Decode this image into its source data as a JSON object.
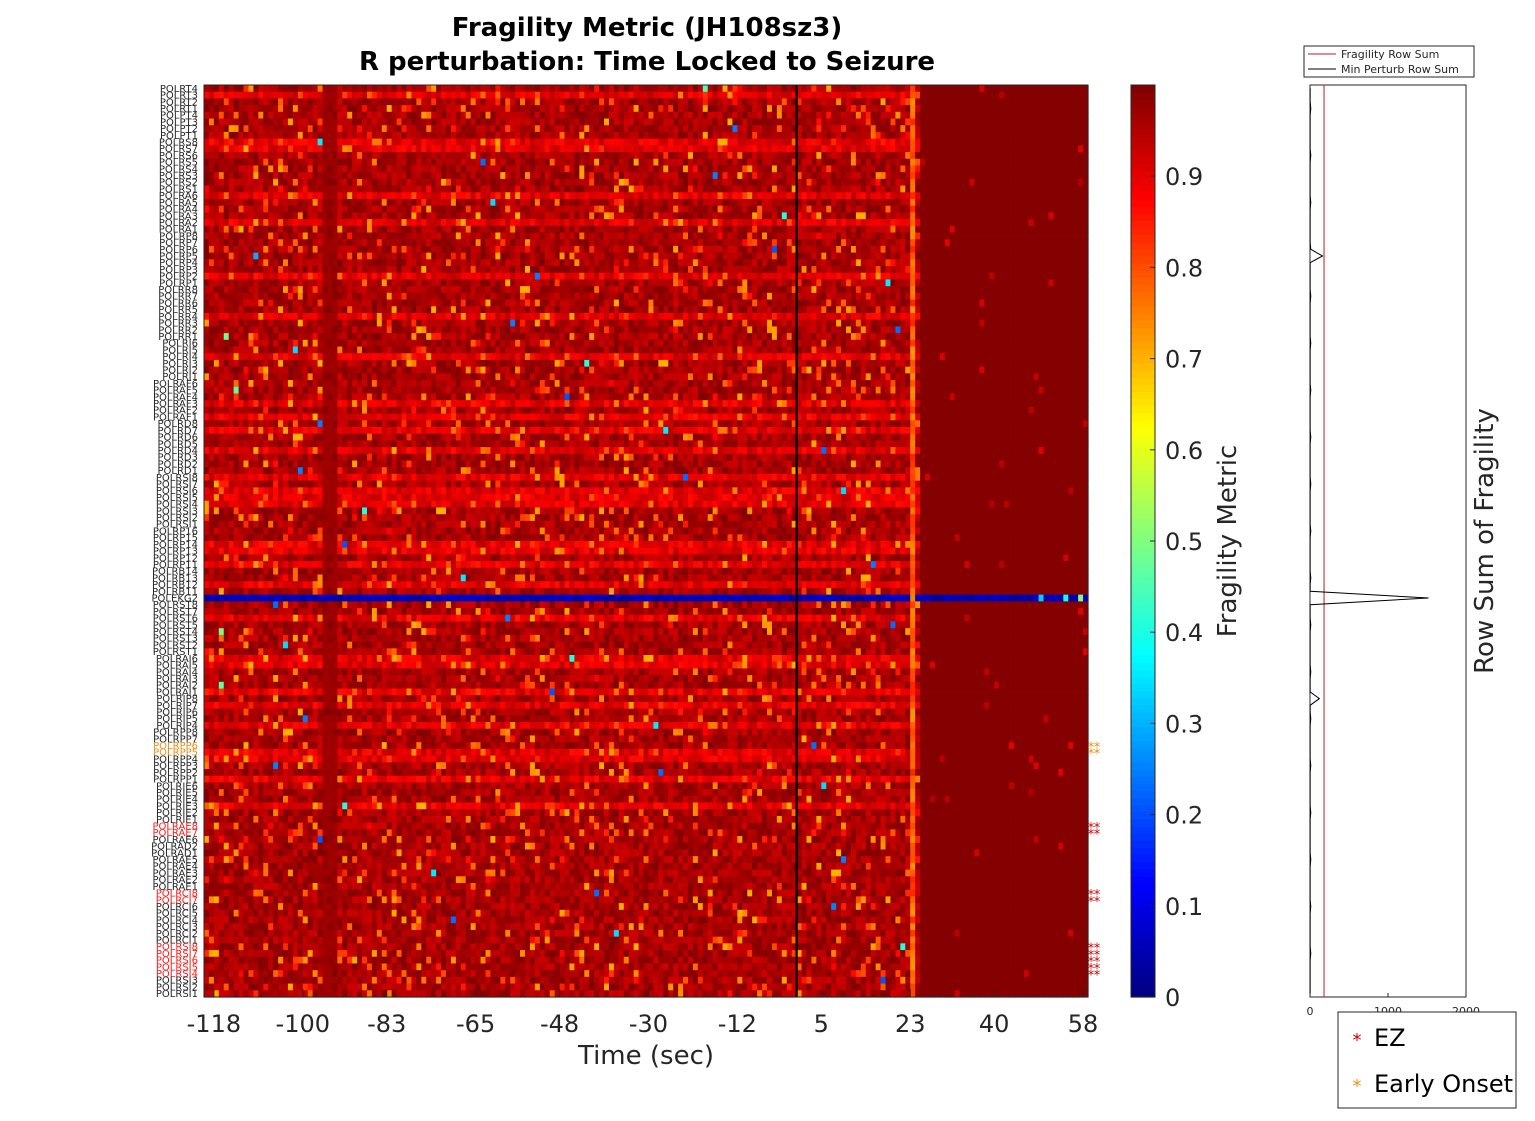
{
  "chart_data": {
    "type": "heatmap",
    "title": "Fragility Metric (JH108sz3)",
    "subtitle": "R perturbation:  Time Locked to Seizure",
    "xlabel": "Time (sec)",
    "x_ticks": [
      "-118",
      "-100",
      "-83",
      "-65",
      "-48",
      "-30",
      "-12",
      "5",
      "23",
      "40",
      "58"
    ],
    "x_tick_seconds": [
      -118,
      -100,
      -83,
      -65,
      -48,
      -30,
      -12,
      5,
      23,
      40,
      58
    ],
    "x_range": [
      -120,
      59
    ],
    "seizure_onset_sec": 0,
    "grid": false,
    "channels": [
      "POLRT4",
      "POLRT3",
      "POLRT2",
      "POLRT1",
      "POLPT4",
      "POLPT3",
      "POLPT2",
      "POLPT1",
      "POLRS8",
      "POLRS7",
      "POLRS6",
      "POLRS5",
      "POLRS4",
      "POLRS3",
      "POLRS2",
      "POLRS1",
      "POLRA6",
      "POLRA5",
      "POLRA4",
      "POLRA3",
      "POLRA2",
      "POLRA1",
      "POLRP8",
      "POLRP7",
      "POLRP6",
      "POLRP5",
      "POLRP4",
      "POLRP3",
      "POLRP2",
      "POLRP1",
      "POLRR8",
      "POLRR7",
      "POLRR6",
      "POLRR5",
      "POLRR4",
      "POLRR3",
      "POLRR2",
      "POLRR1",
      "POLRI6",
      "POLRI5",
      "POLRI4",
      "POLRI3",
      "POLRI2",
      "POLRI1",
      "POLRAF6",
      "POLRAF5",
      "POLRAF4",
      "POLRAF3",
      "POLRAF2",
      "POLRAF1",
      "POLRD8",
      "POLRD7",
      "POLRD6",
      "POLRD5",
      "POLRD4",
      "POLRD3",
      "POLRD2",
      "POLRD1",
      "POLRSI8",
      "POLRSI7",
      "POLRSI6",
      "POLRSI5",
      "POLRSI4",
      "POLRSI3",
      "POLRSI2",
      "POLRSI1",
      "POLRP16",
      "POLRP15",
      "POLRP14",
      "POLRP13",
      "POLRP12",
      "POLRP11",
      "POLRB14",
      "POLRB13",
      "POLRB12",
      "POLRB11",
      "POLEKG2",
      "POLRST8",
      "POLRST7",
      "POLRST6",
      "POLRST5",
      "POLRST4",
      "POLRST3",
      "POLRST2",
      "POLRST1",
      "POLRAI6",
      "POLRAI5",
      "POLRAI4",
      "POLRAI3",
      "POLRAI2",
      "POLRAI1",
      "POLRIP8",
      "POLRIP7",
      "POLRIP6",
      "POLRIP5",
      "POLRIP4",
      "POLRPP8",
      "POLRPP7",
      "POLRPP6",
      "POLRPP5",
      "POLRPP4",
      "POLRPP3",
      "POLRPP2",
      "POLRPP1",
      "POLRIE6",
      "POLRIE5",
      "POLRIE4",
      "POLRIE3",
      "POLRIE2",
      "POLRIE1",
      "POLRAE8",
      "POLRAE7",
      "POLRAE6",
      "POLRAD2",
      "POLRAD1",
      "POLRAE5",
      "POLRAE4",
      "POLRAE3",
      "POLRAE2",
      "POLRAE1",
      "POLRCI8",
      "POLRCI7",
      "POLRCI6",
      "POLRCI5",
      "POLRCI4",
      "POLRCI3",
      "POLRCI2",
      "POLRCI1",
      "POLRSI8",
      "POLRSI7",
      "POLRSI6",
      "POLRSI5",
      "POLRSI4",
      "POLRSI3",
      "POLRSI2",
      "POLRSI1"
    ],
    "ez_channel_indices": [
      110,
      111,
      120,
      121,
      128,
      129,
      130,
      131,
      132
    ],
    "early_onset_channel_indices": [
      98,
      99
    ],
    "colorbar": {
      "label": "Fragility Metric",
      "ticks": [
        "0",
        "0.1",
        "0.2",
        "0.3",
        "0.4",
        "0.5",
        "0.6",
        "0.7",
        "0.8",
        "0.9"
      ],
      "range": [
        0,
        1
      ],
      "colormap": "jet"
    },
    "side_panel": {
      "ylabel": "Row Sum of Fragility",
      "x_ticks": [
        "0",
        "1000",
        "2000"
      ],
      "x_range": [
        0,
        2000
      ],
      "fragility_row_sum_value": 180,
      "min_perturb_spikes": [
        {
          "channel_index": 25,
          "value": 160
        },
        {
          "channel_index": 76,
          "value": 1520
        },
        {
          "channel_index": 91,
          "value": 120
        }
      ]
    },
    "legend_top": {
      "placement": "top",
      "entries": [
        {
          "name": "Fragility Row Sum",
          "color": "#b22222"
        },
        {
          "name": "Min Perturb Row Sum",
          "color": "#000000"
        }
      ]
    },
    "legend_bottom": {
      "placement": "bottom-right",
      "entries": [
        {
          "name": "EZ",
          "marker": "*",
          "color": "#cc0000"
        },
        {
          "name": "Early Onset",
          "marker": "*",
          "color": "#e8901a"
        }
      ]
    },
    "colors": {
      "ez_label": "#ff1a1a",
      "early_label": "#e8901a",
      "onset_line": "#000000"
    }
  }
}
